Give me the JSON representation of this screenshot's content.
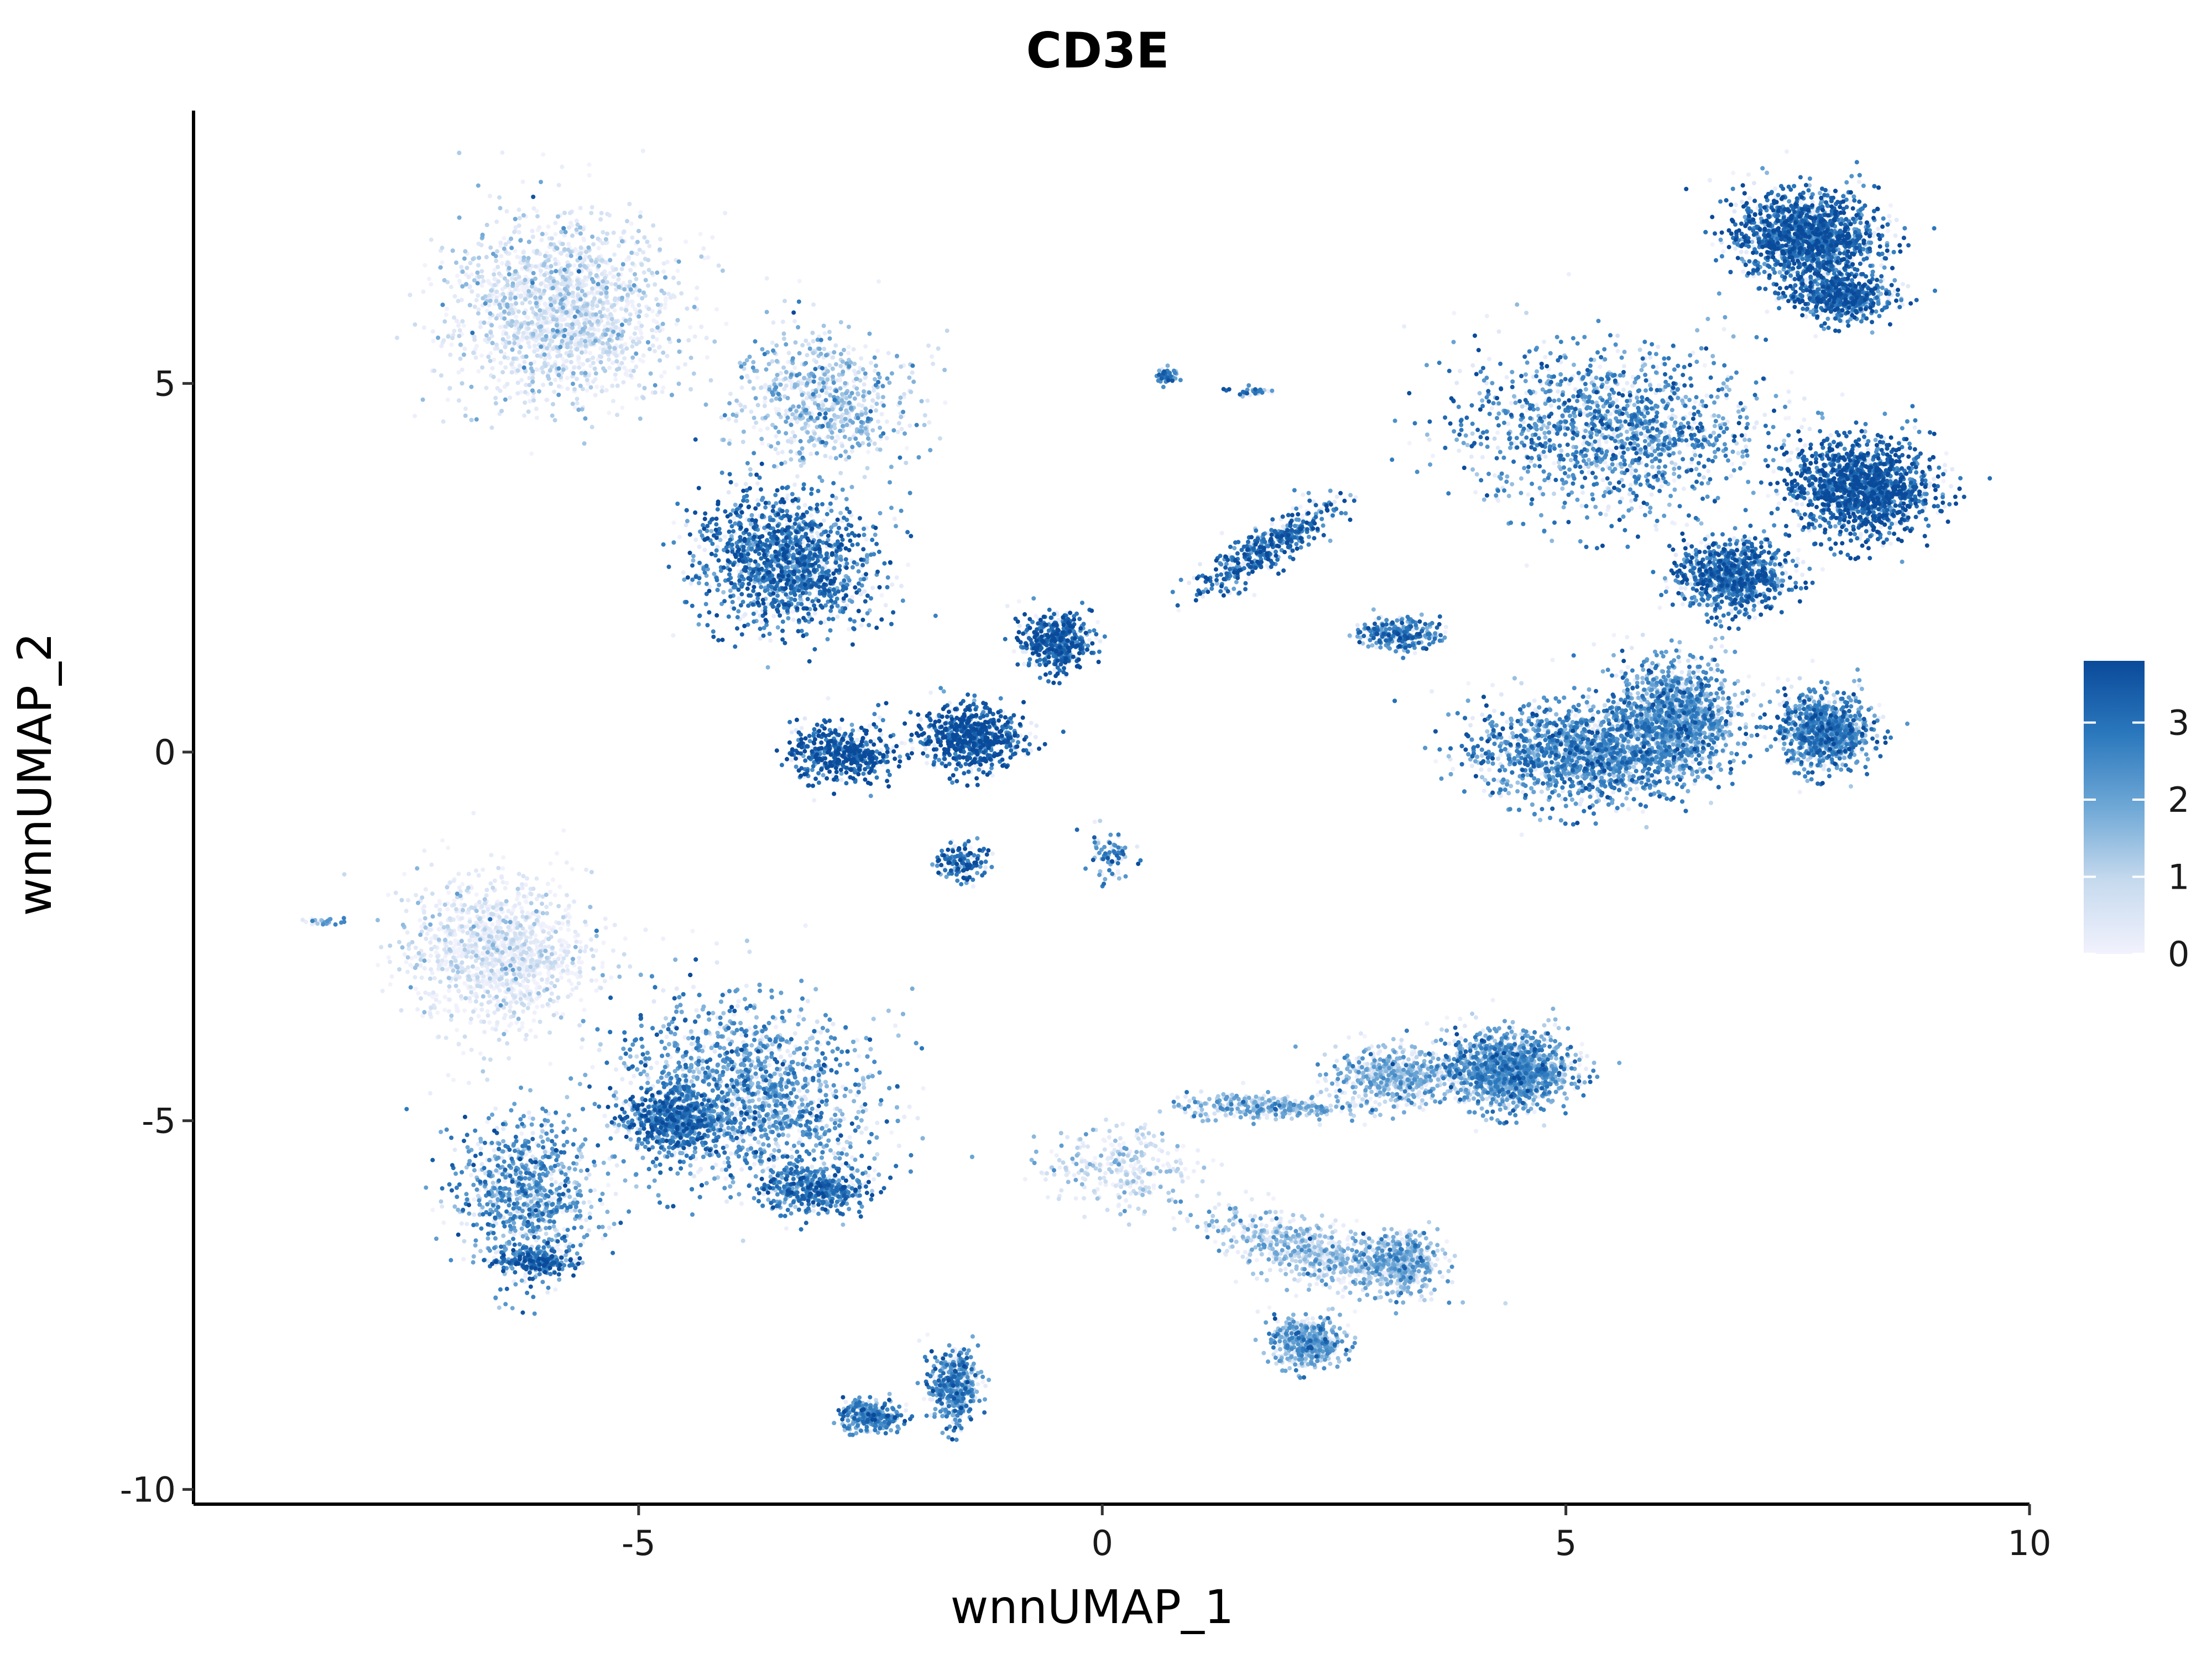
{
  "chart_data": {
    "type": "scatter",
    "title": "CD3E",
    "xlabel": "wnnUMAP_1",
    "ylabel": "wnnUMAP_2",
    "xlim": [
      -9.8,
      10
    ],
    "ylim": [
      -10.2,
      8.7
    ],
    "x_ticks": [
      -5,
      0,
      5,
      10
    ],
    "x_tick_labels": [
      "-5",
      "0",
      "5",
      "10"
    ],
    "y_ticks": [
      -10,
      -5,
      0,
      5
    ],
    "y_tick_labels": [
      "-10",
      "-5",
      "0",
      "5"
    ],
    "grid": false,
    "color_scale": {
      "low": "#f2f2fd",
      "high": "#0a4a9a",
      "range": [
        0,
        3.8
      ],
      "ticks": [
        0,
        1,
        2,
        3
      ],
      "tick_labels": [
        "0",
        "1",
        "2",
        "3"
      ],
      "legend_position": "right"
    },
    "clusters": [
      {
        "center": [
          -5.8,
          6.0
        ],
        "spread": [
          1.1,
          1.1
        ],
        "angle": -30,
        "n": 2200,
        "expression": 0.6
      },
      {
        "center": [
          -3.4,
          2.6
        ],
        "spread": [
          0.9,
          0.8
        ],
        "angle": -30,
        "n": 1500,
        "expression": 2.9
      },
      {
        "center": [
          -3.0,
          4.8
        ],
        "spread": [
          0.9,
          0.8
        ],
        "angle": -30,
        "n": 700,
        "expression": 1.4
      },
      {
        "center": [
          -1.4,
          0.2
        ],
        "spread": [
          0.5,
          0.4
        ],
        "angle": 0,
        "n": 700,
        "expression": 3.4
      },
      {
        "center": [
          -2.8,
          0.0
        ],
        "spread": [
          0.5,
          0.35
        ],
        "angle": 0,
        "n": 500,
        "expression": 3.4
      },
      {
        "center": [
          -0.5,
          1.5
        ],
        "spread": [
          0.35,
          0.35
        ],
        "angle": 0,
        "n": 500,
        "expression": 3.2
      },
      {
        "center": [
          -1.5,
          -1.5
        ],
        "spread": [
          0.25,
          0.25
        ],
        "angle": 0,
        "n": 150,
        "expression": 3.0
      },
      {
        "center": [
          0.1,
          -1.4
        ],
        "spread": [
          0.2,
          0.3
        ],
        "angle": 0,
        "n": 80,
        "expression": 2.6
      },
      {
        "center": [
          0.7,
          5.1
        ],
        "spread": [
          0.12,
          0.1
        ],
        "angle": 0,
        "n": 60,
        "expression": 2.4
      },
      {
        "center": [
          1.6,
          4.9
        ],
        "spread": [
          0.2,
          0.05
        ],
        "angle": 0,
        "n": 30,
        "expression": 2.4
      },
      {
        "center": [
          1.8,
          2.8
        ],
        "spread": [
          0.9,
          0.22
        ],
        "angle": 40,
        "n": 450,
        "expression": 3.0
      },
      {
        "center": [
          7.6,
          7.0
        ],
        "spread": [
          0.7,
          0.55
        ],
        "angle": 0,
        "n": 2200,
        "expression": 3.1
      },
      {
        "center": [
          8.0,
          6.2
        ],
        "spread": [
          0.5,
          0.3
        ],
        "angle": 0,
        "n": 600,
        "expression": 3.0
      },
      {
        "center": [
          8.2,
          3.6
        ],
        "spread": [
          0.7,
          0.6
        ],
        "angle": 0,
        "n": 1600,
        "expression": 3.3
      },
      {
        "center": [
          6.8,
          2.4
        ],
        "spread": [
          0.55,
          0.45
        ],
        "angle": 0,
        "n": 900,
        "expression": 3.0
      },
      {
        "center": [
          5.5,
          4.4
        ],
        "spread": [
          1.5,
          1.0
        ],
        "angle": 0,
        "n": 1400,
        "expression": 2.5
      },
      {
        "center": [
          5.2,
          0.0
        ],
        "spread": [
          1.1,
          0.6
        ],
        "angle": 0,
        "n": 2800,
        "expression": 2.4
      },
      {
        "center": [
          6.2,
          0.5
        ],
        "spread": [
          0.6,
          0.7
        ],
        "angle": 0,
        "n": 1200,
        "expression": 2.2
      },
      {
        "center": [
          3.2,
          1.6
        ],
        "spread": [
          0.4,
          0.2
        ],
        "angle": 0,
        "n": 300,
        "expression": 2.6
      },
      {
        "center": [
          7.8,
          0.3
        ],
        "spread": [
          0.45,
          0.45
        ],
        "angle": 0,
        "n": 900,
        "expression": 2.5
      },
      {
        "center": [
          -6.5,
          -2.7
        ],
        "spread": [
          0.9,
          0.9
        ],
        "angle": 0,
        "n": 1300,
        "expression": 0.3
      },
      {
        "center": [
          -3.8,
          -4.6
        ],
        "spread": [
          1.3,
          1.1
        ],
        "angle": -25,
        "n": 3200,
        "expression": 2.2
      },
      {
        "center": [
          -4.6,
          -5.0
        ],
        "spread": [
          0.5,
          0.4
        ],
        "angle": 0,
        "n": 700,
        "expression": 2.8
      },
      {
        "center": [
          -3.1,
          -5.9
        ],
        "spread": [
          0.5,
          0.3
        ],
        "angle": 0,
        "n": 500,
        "expression": 2.7
      },
      {
        "center": [
          -6.2,
          -6.0
        ],
        "spread": [
          0.7,
          1.0
        ],
        "angle": 0,
        "n": 900,
        "expression": 2.2
      },
      {
        "center": [
          -6.1,
          -6.9
        ],
        "spread": [
          0.4,
          0.15
        ],
        "angle": 0,
        "n": 250,
        "expression": 3.0
      },
      {
        "center": [
          -2.5,
          -9.0
        ],
        "spread": [
          0.3,
          0.2
        ],
        "angle": 0,
        "n": 300,
        "expression": 2.4
      },
      {
        "center": [
          -1.6,
          -8.6
        ],
        "spread": [
          0.25,
          0.45
        ],
        "angle": 0,
        "n": 450,
        "expression": 2.4
      },
      {
        "center": [
          -8.4,
          -2.3
        ],
        "spread": [
          0.2,
          0.04
        ],
        "angle": 0,
        "n": 30,
        "expression": 2.0
      },
      {
        "center": [
          4.4,
          -4.3
        ],
        "spread": [
          0.6,
          0.45
        ],
        "angle": 0,
        "n": 1400,
        "expression": 2.1
      },
      {
        "center": [
          3.2,
          -4.4
        ],
        "spread": [
          0.6,
          0.35
        ],
        "angle": 0,
        "n": 600,
        "expression": 1.4
      },
      {
        "center": [
          1.8,
          -4.8
        ],
        "spread": [
          0.9,
          0.15
        ],
        "angle": 0,
        "n": 350,
        "expression": 1.6
      },
      {
        "center": [
          3.2,
          -6.9
        ],
        "spread": [
          0.4,
          0.35
        ],
        "angle": 0,
        "n": 500,
        "expression": 1.6
      },
      {
        "center": [
          2.3,
          -6.8
        ],
        "spread": [
          1.1,
          0.35
        ],
        "angle": -20,
        "n": 700,
        "expression": 1.2
      },
      {
        "center": [
          2.2,
          -8.0
        ],
        "spread": [
          0.35,
          0.3
        ],
        "angle": 0,
        "n": 500,
        "expression": 1.8
      },
      {
        "center": [
          0.2,
          -5.6
        ],
        "spread": [
          0.8,
          0.5
        ],
        "angle": 0,
        "n": 300,
        "expression": 0.9
      }
    ]
  }
}
